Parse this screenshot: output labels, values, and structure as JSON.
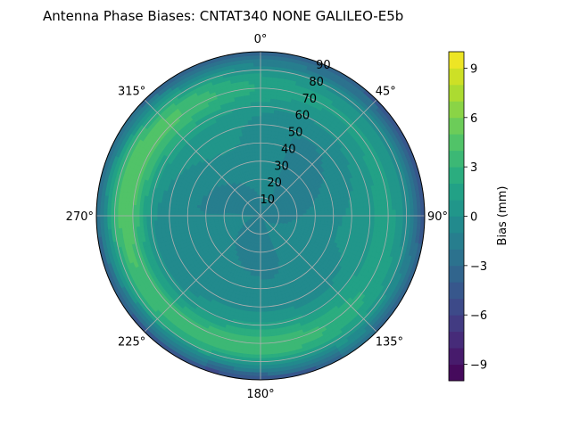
{
  "chart_data": {
    "type": "polar-contour",
    "title": "Antenna Phase Biases: CNTAT340        NONE GALILEO-E5b",
    "azimuth_ticks": [
      {
        "label": "0°",
        "deg": 0
      },
      {
        "label": "45°",
        "deg": 45
      },
      {
        "label": "90°",
        "deg": 90
      },
      {
        "label": "135°",
        "deg": 135
      },
      {
        "label": "180°",
        "deg": 180
      },
      {
        "label": "225°",
        "deg": 225
      },
      {
        "label": "270°",
        "deg": 270
      },
      {
        "label": "315°",
        "deg": 315
      }
    ],
    "radial_ticks": [
      "10",
      "20",
      "30",
      "40",
      "50",
      "60",
      "70",
      "80",
      "90"
    ],
    "radial_range": [
      0,
      90
    ],
    "grid": true,
    "colormap": "viridis",
    "colorbar": {
      "label": "Bias (mm)",
      "range": [
        -10,
        10
      ],
      "levels": 20,
      "ticks": [
        {
          "label": "9",
          "value": 9
        },
        {
          "label": "6",
          "value": 6
        },
        {
          "label": "3",
          "value": 3
        },
        {
          "label": "0",
          "value": 0
        },
        {
          "label": "−3",
          "value": -3
        },
        {
          "label": "−6",
          "value": -6
        },
        {
          "label": "−9",
          "value": -9
        }
      ]
    },
    "field": {
      "description_of_pattern": "center ~-2 mm, west/southwest ring ~+4 mm at zenith angles 60-80, east ring ~+2 mm, outer edge ~-6 mm",
      "center_value": -1.5,
      "ring_peak_value": 4.5,
      "edge_value": -6.5
    }
  }
}
